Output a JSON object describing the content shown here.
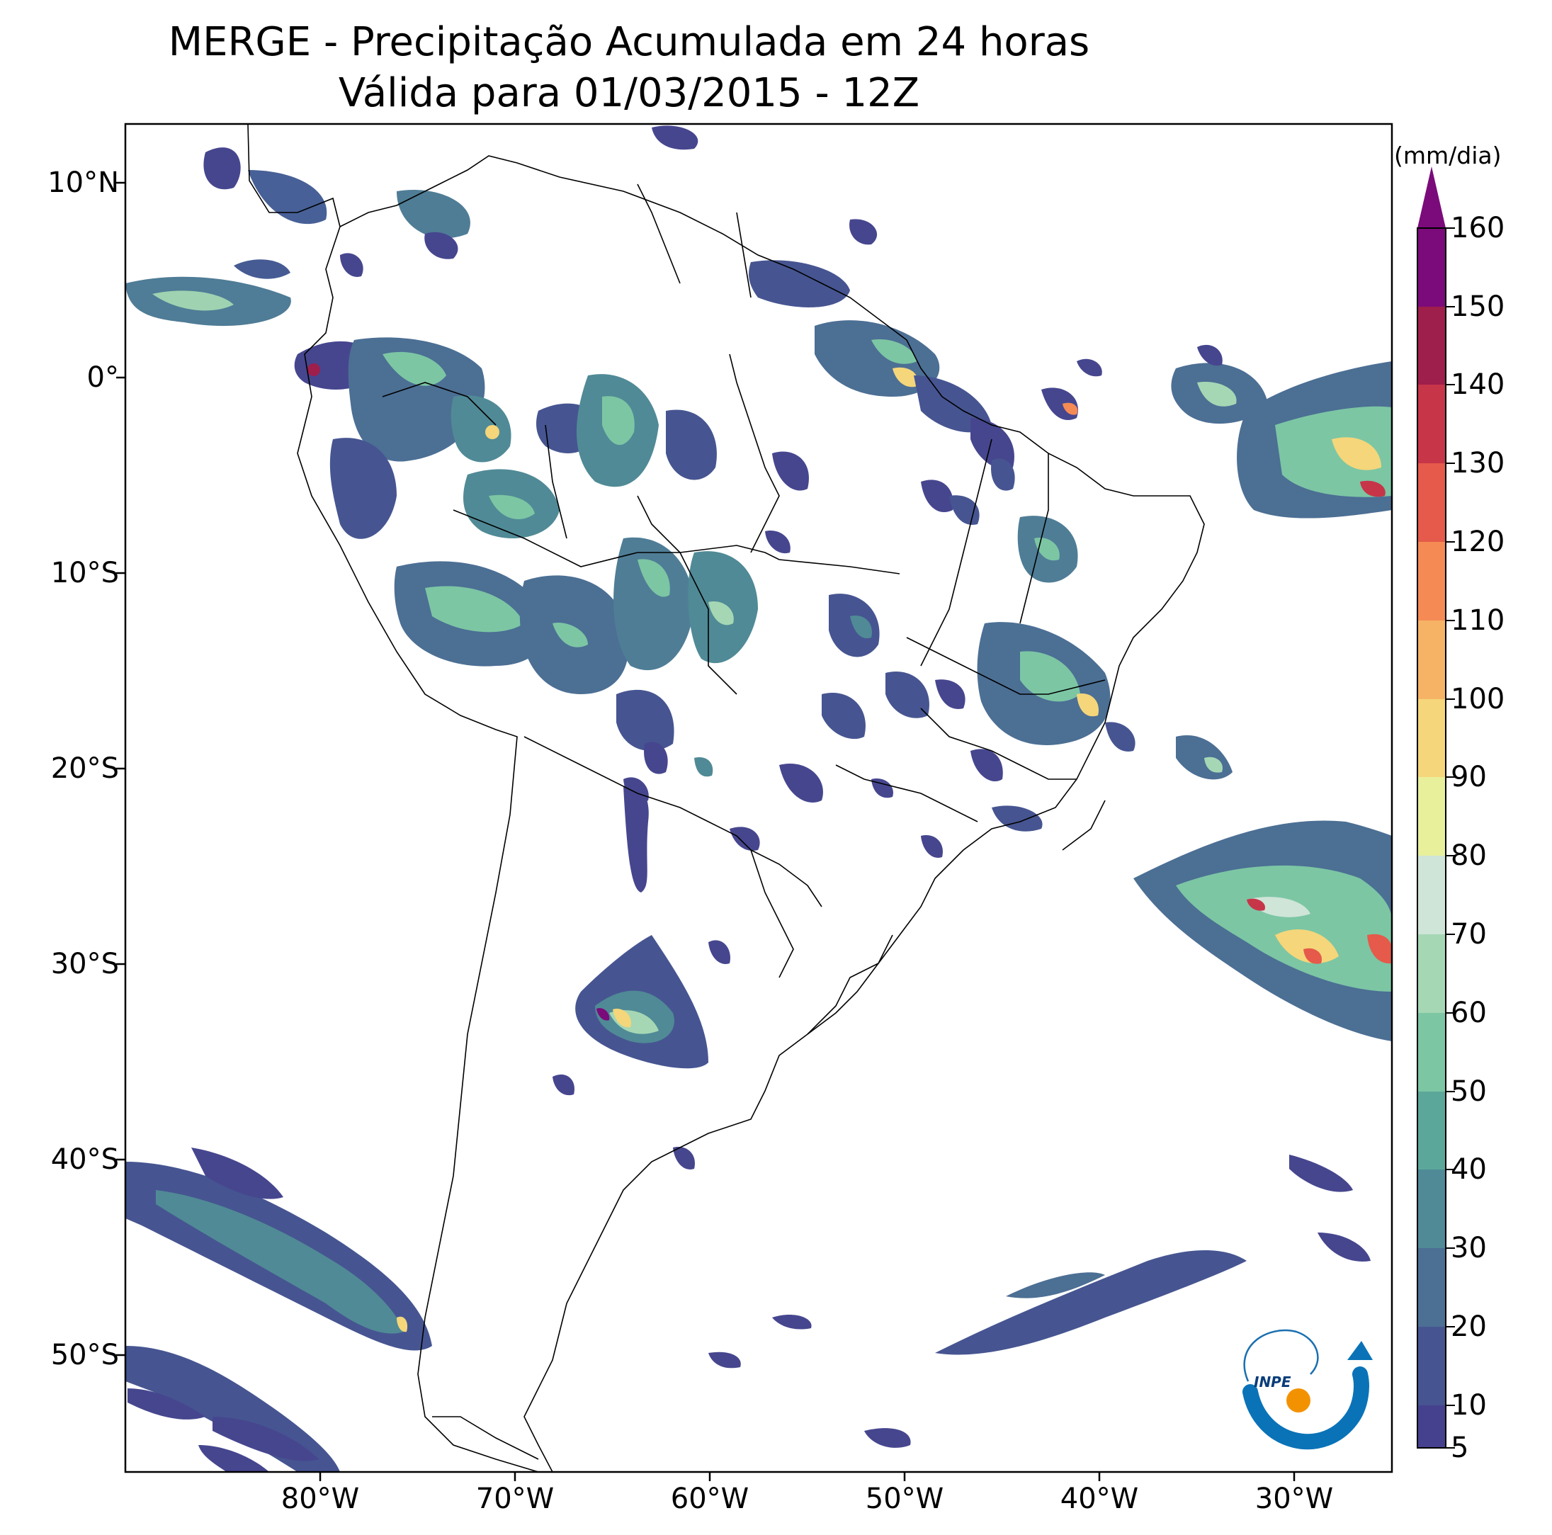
{
  "title": {
    "line1": "MERGE - Precipitação Acumulada em 24 horas",
    "line2": "Válida para 01/03/2015 - 12Z"
  },
  "map": {
    "lon_range": [
      -90,
      -25
    ],
    "lat_range": [
      -56,
      13
    ],
    "lat_ticks": [
      "10°N",
      "0°",
      "10°S",
      "20°S",
      "30°S",
      "40°S",
      "50°S"
    ],
    "lon_ticks": [
      "80°W",
      "70°W",
      "60°W",
      "50°W",
      "40°W",
      "30°W"
    ]
  },
  "colorbar": {
    "unit": "(mm/dia)",
    "labels": [
      "160",
      "150",
      "140",
      "130",
      "120",
      "110",
      "100",
      "90",
      "80",
      "70",
      "60",
      "50",
      "40",
      "30",
      "20",
      "10",
      "5"
    ],
    "colors": [
      "#45418e",
      "#465591",
      "#4c6f94",
      "#508a96",
      "#5ba89a",
      "#7cc6a4",
      "#a5d7b4",
      "#cfe5d8",
      "#e8f09c",
      "#f5d67a",
      "#f6b366",
      "#f58a55",
      "#e55a4a",
      "#c73549",
      "#9e1e4c",
      "#7b0b7a"
    ],
    "extend_color": "#7b0b7a"
  },
  "logo": {
    "text": "INPE"
  }
}
